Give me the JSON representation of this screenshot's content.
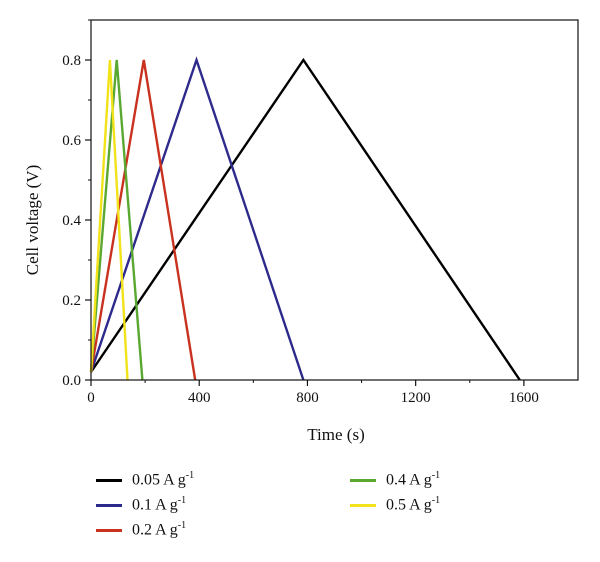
{
  "chart_data": {
    "type": "line",
    "title": "",
    "xlabel": "Time (s)",
    "ylabel": "Cell voltage (V)",
    "xlim": [
      0,
      1800
    ],
    "ylim": [
      0,
      0.9
    ],
    "xticks": [
      0,
      400,
      800,
      1200,
      1600
    ],
    "yticks": [
      0.0,
      0.2,
      0.4,
      0.6,
      0.8
    ],
    "xtick_labels": [
      "0",
      "400",
      "800",
      "1200",
      "1600"
    ],
    "ytick_labels": [
      "0.0",
      "0.2",
      "0.4",
      "0.6",
      "0.8"
    ],
    "grid": false,
    "legend_position": "below",
    "series": [
      {
        "name": "0.05 A g-1",
        "label_main": "0.05 A g",
        "label_sup": "-1",
        "color": "#000000",
        "x": [
          0,
          785,
          1585
        ],
        "y": [
          0.02,
          0.8,
          0.0
        ]
      },
      {
        "name": "0.1 A g-1",
        "label_main": "0.1 A g",
        "label_sup": "-1",
        "color": "#2e2a8c",
        "x": [
          0,
          390,
          785
        ],
        "y": [
          0.02,
          0.8,
          0.0
        ]
      },
      {
        "name": "0.2 A g-1",
        "label_main": "0.2 A g",
        "label_sup": "-1",
        "color": "#c8321e",
        "x": [
          0,
          195,
          385
        ],
        "y": [
          0.02,
          0.8,
          0.0
        ]
      },
      {
        "name": "0.4 A g-1",
        "label_main": "0.4 A g",
        "label_sup": "-1",
        "color": "#5aa832",
        "x": [
          0,
          95,
          190
        ],
        "y": [
          0.02,
          0.8,
          0.0
        ]
      },
      {
        "name": "0.5 A g-1",
        "label_main": "0.5 A g",
        "label_sup": "-1",
        "color": "#f2e21a",
        "x": [
          0,
          70,
          135
        ],
        "y": [
          0.02,
          0.8,
          0.0
        ]
      }
    ]
  }
}
